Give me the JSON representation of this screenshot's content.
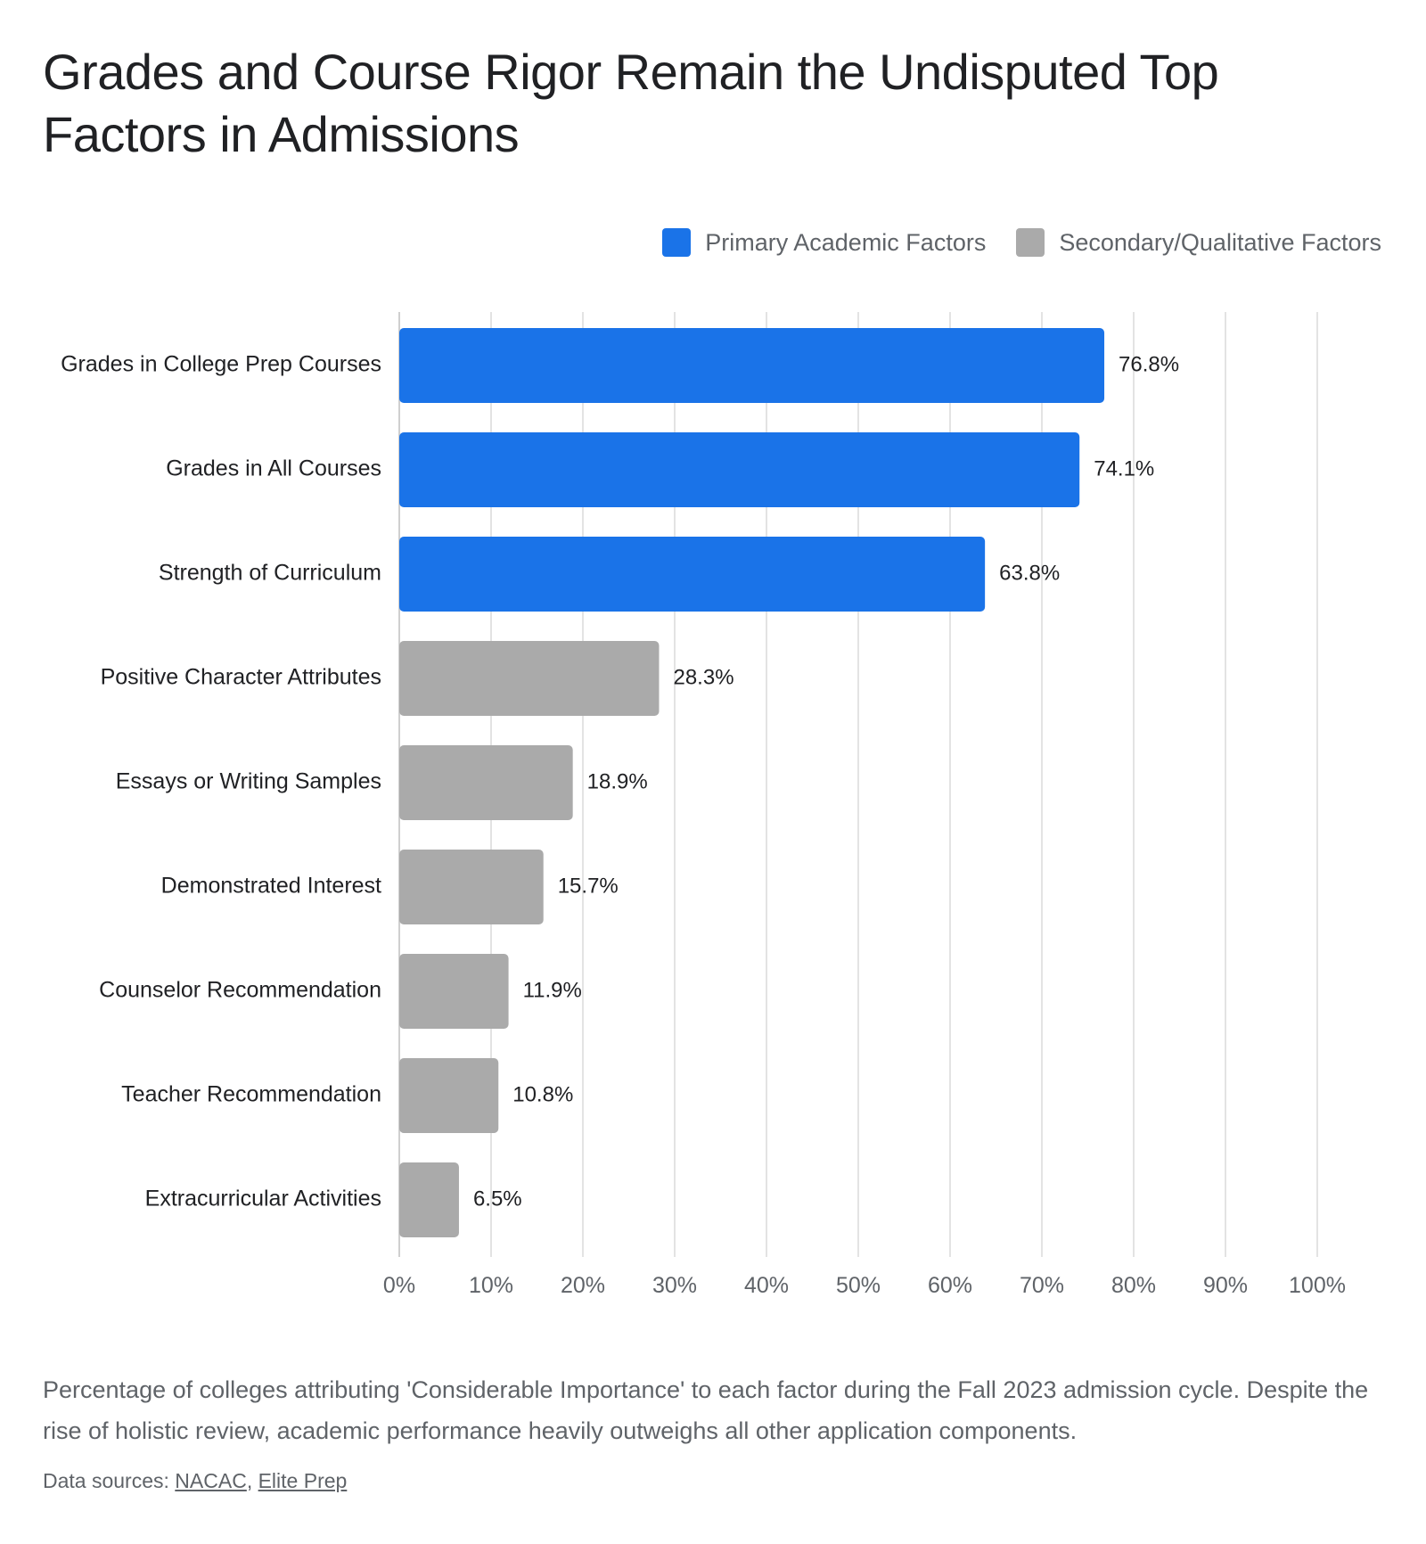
{
  "title": "Grades and Course Rigor Remain the Undisputed Top Factors in Admissions",
  "legend": {
    "primary": {
      "label": "Primary Academic Factors",
      "color": "#1a73e8"
    },
    "secondary": {
      "label": "Secondary/Qualitative Factors",
      "color": "#aaaaaa"
    }
  },
  "caption": "Percentage of colleges attributing 'Considerable Importance' to each factor during the Fall 2023 admission cycle. Despite the rise of holistic review, academic performance heavily outweighs all other application components.",
  "sources": {
    "prefix": "Data sources: ",
    "separator": ", ",
    "links": [
      "NACAC",
      "Elite Prep"
    ]
  },
  "chart_data": {
    "type": "bar",
    "orientation": "horizontal",
    "categories": [
      "Grades in College Prep Courses",
      "Grades in All Courses",
      "Strength of Curriculum",
      "Positive Character Attributes",
      "Essays or Writing Samples",
      "Demonstrated Interest",
      "Counselor Recommendation",
      "Teacher Recommendation",
      "Extracurricular Activities"
    ],
    "values": [
      76.8,
      74.1,
      63.8,
      28.3,
      18.9,
      15.7,
      11.9,
      10.8,
      6.5
    ],
    "value_labels": [
      "76.8%",
      "74.1%",
      "63.8%",
      "28.3%",
      "18.9%",
      "15.7%",
      "11.9%",
      "10.8%",
      "6.5%"
    ],
    "groups": [
      "primary",
      "primary",
      "primary",
      "secondary",
      "secondary",
      "secondary",
      "secondary",
      "secondary",
      "secondary"
    ],
    "xlim": [
      0,
      100
    ],
    "xticks": [
      0,
      10,
      20,
      30,
      40,
      50,
      60,
      70,
      80,
      90,
      100
    ],
    "xtick_labels": [
      "0%",
      "10%",
      "20%",
      "30%",
      "40%",
      "50%",
      "60%",
      "70%",
      "80%",
      "90%",
      "100%"
    ],
    "grid": true,
    "legend_position": "top-right"
  }
}
